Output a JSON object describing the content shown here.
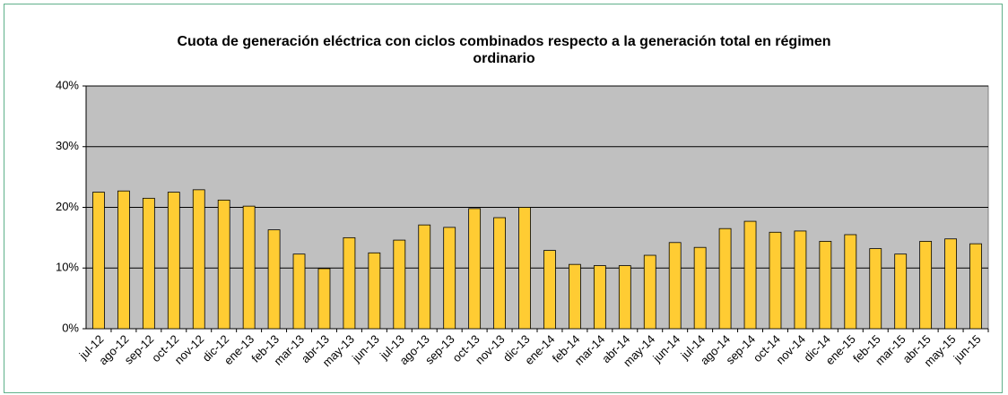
{
  "chart_data": {
    "type": "bar",
    "title": "Cuota de generación eléctrica con ciclos combinados respecto a la generación total en régimen ordinario",
    "categories": [
      "jul-12",
      "ago-12",
      "sep-12",
      "oct-12",
      "nov-12",
      "dic-12",
      "ene-13",
      "feb-13",
      "mar-13",
      "abr-13",
      "may-13",
      "jun-13",
      "jul-13",
      "ago-13",
      "sep-13",
      "oct-13",
      "nov-13",
      "dic-13",
      "ene-14",
      "feb-14",
      "mar-14",
      "abr-14",
      "may-14",
      "jun-14",
      "jul-14",
      "ago-14",
      "sep-14",
      "oct-14",
      "nov-14",
      "dic-14",
      "ene-15",
      "feb-15",
      "mar-15",
      "abr-15",
      "may-15",
      "jun-15"
    ],
    "values": [
      22.5,
      22.7,
      21.5,
      22.5,
      22.9,
      21.2,
      20.2,
      16.3,
      12.3,
      9.9,
      15.0,
      12.5,
      14.6,
      17.1,
      16.7,
      19.8,
      18.3,
      20.0,
      12.9,
      10.6,
      10.4,
      10.4,
      12.1,
      14.2,
      13.4,
      16.5,
      17.7,
      15.9,
      16.1,
      14.4,
      15.5,
      13.2,
      12.3,
      14.4,
      14.8,
      14.0
    ],
    "color": "#ffcc33",
    "ylim": [
      0,
      40
    ],
    "yticks": [
      {
        "value": 0,
        "label": "0%"
      },
      {
        "value": 10,
        "label": "10%"
      },
      {
        "value": 20,
        "label": "20%"
      },
      {
        "value": 30,
        "label": "30%"
      },
      {
        "value": 40,
        "label": "40%"
      }
    ],
    "grid": true
  }
}
